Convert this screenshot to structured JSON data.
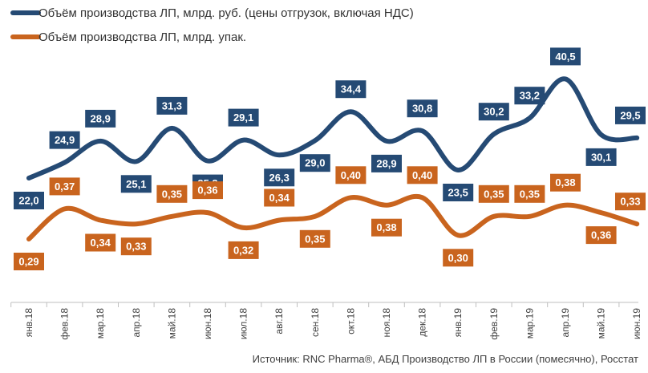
{
  "chart_data": {
    "type": "line",
    "title": "",
    "xlabel": "",
    "ylabel": "",
    "categories": [
      "янв.18",
      "фев.18",
      "мар.18",
      "апр.18",
      "май.18",
      "июн.18",
      "июл.18",
      "авг.18",
      "сен.18",
      "окт.18",
      "ноя.18",
      "дек.18",
      "янв.19",
      "фев.19",
      "мар.19",
      "апр.19",
      "май.19",
      "июн.19"
    ],
    "series": [
      {
        "name": "Объём производства ЛП, млрд. руб. (цены отгрузок, включая НДС)",
        "color": "#254a74",
        "values": [
          22.0,
          24.9,
          28.9,
          25.1,
          31.3,
          25.2,
          29.1,
          26.3,
          29.0,
          34.4,
          28.9,
          30.8,
          23.5,
          30.2,
          33.2,
          40.5,
          30.1,
          29.5
        ],
        "labels": [
          "22,0",
          "24,9",
          "28,9",
          "25,1",
          "31,3",
          "25,2",
          "29,1",
          "26,3",
          "29,0",
          "34,4",
          "28,9",
          "30,8",
          "23,5",
          "30,2",
          "33,2",
          "40,5",
          "30,1",
          "29,5"
        ]
      },
      {
        "name": "Объём производства ЛП, млрд. упак.",
        "color": "#c9641e",
        "values": [
          0.29,
          0.37,
          0.34,
          0.33,
          0.35,
          0.36,
          0.32,
          0.34,
          0.35,
          0.4,
          0.38,
          0.4,
          0.3,
          0.35,
          0.35,
          0.38,
          0.36,
          0.33
        ],
        "labels": [
          "0,29",
          "0,37",
          "0,34",
          "0,33",
          "0,35",
          "0,36",
          "0,32",
          "0,34",
          "0,35",
          "0,40",
          "0,38",
          "0,40",
          "0,30",
          "0,35",
          "0,35",
          "0,38",
          "0,36",
          "0,33"
        ]
      }
    ],
    "legend": "top-left",
    "grid": false
  },
  "source": "Источник: RNC Pharma®, АБД Производство ЛП в России (помесячно), Росстат"
}
